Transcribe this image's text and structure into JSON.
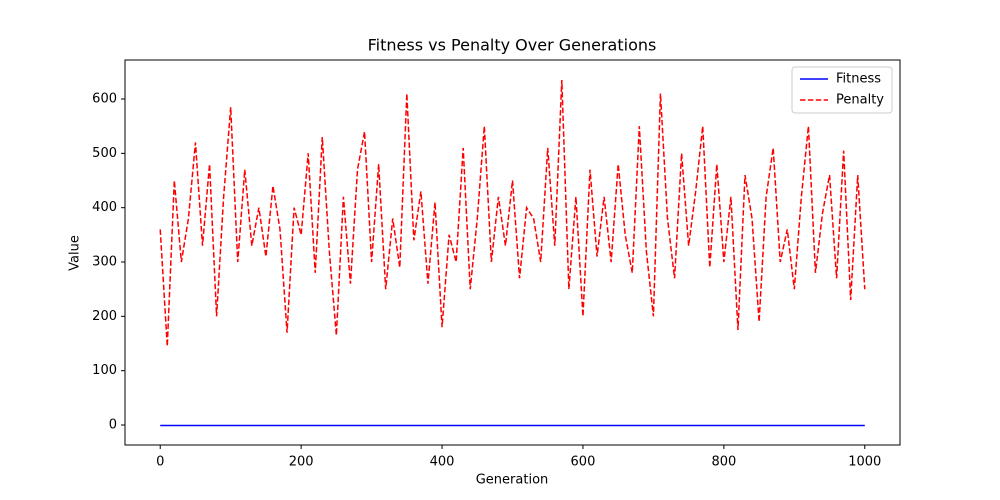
{
  "chart_data": {
    "type": "line",
    "title": "Fitness vs Penalty Over Generations",
    "x_label": "Generation",
    "y_label": "Value",
    "x": [
      0,
      10,
      20,
      30,
      40,
      50,
      60,
      70,
      80,
      90,
      100,
      110,
      120,
      130,
      140,
      150,
      160,
      170,
      180,
      190,
      200,
      210,
      220,
      230,
      240,
      250,
      260,
      270,
      280,
      290,
      300,
      310,
      320,
      330,
      340,
      350,
      360,
      370,
      380,
      390,
      400,
      410,
      420,
      430,
      440,
      450,
      460,
      470,
      480,
      490,
      500,
      510,
      520,
      530,
      540,
      550,
      560,
      570,
      580,
      590,
      600,
      610,
      620,
      630,
      640,
      650,
      660,
      670,
      680,
      690,
      700,
      710,
      720,
      730,
      740,
      750,
      760,
      770,
      780,
      790,
      800,
      810,
      820,
      830,
      840,
      850,
      860,
      870,
      880,
      890,
      900,
      910,
      920,
      930,
      940,
      950,
      960,
      970,
      980,
      990,
      1000
    ],
    "series": [
      {
        "name": "Fitness",
        "color": "#0000ff",
        "dashed": false,
        "values": [
          -1,
          -1,
          -1,
          -1,
          -1,
          -1,
          -1,
          -1,
          -1,
          -1,
          -1,
          -1,
          -1,
          -1,
          -1,
          -1,
          -1,
          -1,
          -1,
          -1,
          -1,
          -1,
          -1,
          -1,
          -1,
          -1,
          -1,
          -1,
          -1,
          -1,
          -1,
          -1,
          -1,
          -1,
          -1,
          -1,
          -1,
          -1,
          -1,
          -1,
          -1,
          -1,
          -1,
          -1,
          -1,
          -1,
          -1,
          -1,
          -1,
          -1,
          -1,
          -1,
          -1,
          -1,
          -1,
          -1,
          -1,
          -1,
          -1,
          -1,
          -1,
          -1,
          -1,
          -1,
          -1,
          -1,
          -1,
          -1,
          -1,
          -1,
          -1,
          -1,
          -1,
          -1,
          -1,
          -1,
          -1,
          -1,
          -1,
          -1,
          -1,
          -1,
          -1,
          -1,
          -1,
          -1,
          -1,
          -1,
          -1,
          -1,
          -1,
          -1,
          -1,
          -1,
          -1,
          -1,
          -1,
          -1,
          -1,
          -1,
          -1
        ]
      },
      {
        "name": "Penalty",
        "color": "#ff0000",
        "dashed": true,
        "values": [
          360,
          145,
          450,
          300,
          380,
          520,
          330,
          480,
          200,
          420,
          585,
          300,
          470,
          330,
          400,
          310,
          440,
          360,
          170,
          400,
          350,
          500,
          280,
          530,
          320,
          165,
          420,
          260,
          470,
          540,
          300,
          480,
          250,
          380,
          290,
          610,
          340,
          430,
          260,
          410,
          180,
          350,
          300,
          510,
          250,
          380,
          550,
          300,
          420,
          330,
          450,
          270,
          400,
          380,
          300,
          510,
          330,
          635,
          250,
          420,
          200,
          470,
          310,
          420,
          300,
          480,
          350,
          280,
          550,
          320,
          200,
          610,
          380,
          270,
          500,
          330,
          430,
          550,
          290,
          480,
          300,
          420,
          175,
          460,
          380,
          190,
          420,
          510,
          300,
          360,
          250,
          420,
          550,
          280,
          390,
          460,
          270,
          505,
          230,
          460,
          250
        ]
      }
    ],
    "xlim": [
      -50,
      1050
    ],
    "ylim": [
      -36.8,
      671.8
    ],
    "xticks": [
      0,
      200,
      400,
      600,
      800,
      1000
    ],
    "yticks": [
      0,
      100,
      200,
      300,
      400,
      500,
      600
    ],
    "legend": "upper right"
  }
}
